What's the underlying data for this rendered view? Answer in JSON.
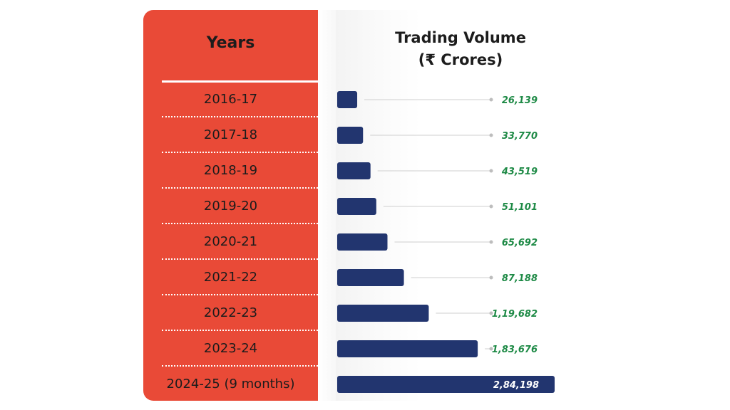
{
  "chart_data": {
    "type": "bar",
    "orientation": "horizontal",
    "category_header": "Years",
    "value_header_line1": "Trading Volume",
    "value_header_line2": "(₹ Crores)",
    "categories": [
      "2016-17",
      "2017-18",
      "2018-19",
      "2019-20",
      "2020-21",
      "2021-22",
      "2022-23",
      "2023-24",
      "2024-25 (9 months)"
    ],
    "values": [
      26139,
      33770,
      43519,
      51101,
      65692,
      87188,
      119682,
      183676,
      284198
    ],
    "value_labels": [
      "26,139",
      "33,770",
      "43,519",
      "51,101",
      "65,692",
      "87,188",
      "1,19,682",
      "1,83,676",
      "2,84,198"
    ],
    "colors": {
      "bar": "#22356f",
      "accent_panel": "#e94a37",
      "value_text": "#1e8a46",
      "value_text_inside": "#ffffff"
    }
  }
}
